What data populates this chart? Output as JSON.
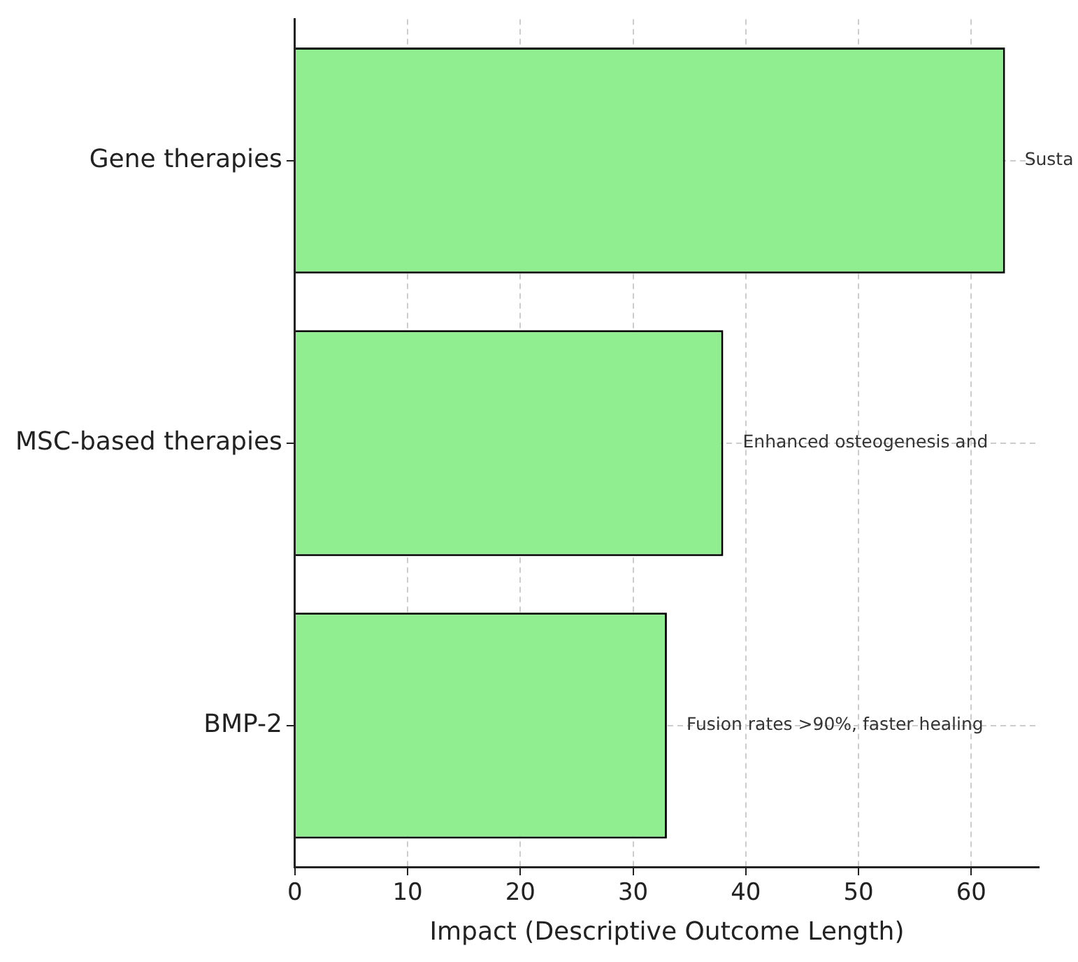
{
  "chart_data": {
    "type": "bar",
    "orientation": "horizontal",
    "xlabel": "Impact (Descriptive Outcome Length)",
    "categories": [
      "Gene therapies",
      "MSC-based therapies",
      "BMP-2"
    ],
    "values": [
      63,
      38,
      33
    ],
    "color": "#90ee90",
    "xlim": [
      0,
      66
    ],
    "xticks": [
      0,
      10,
      20,
      30,
      40,
      50,
      60
    ],
    "grid": true,
    "legend": false,
    "annotations": [
      "Susta",
      "Enhanced osteogenesis and",
      "Fusion rates >90%, faster healing"
    ]
  }
}
